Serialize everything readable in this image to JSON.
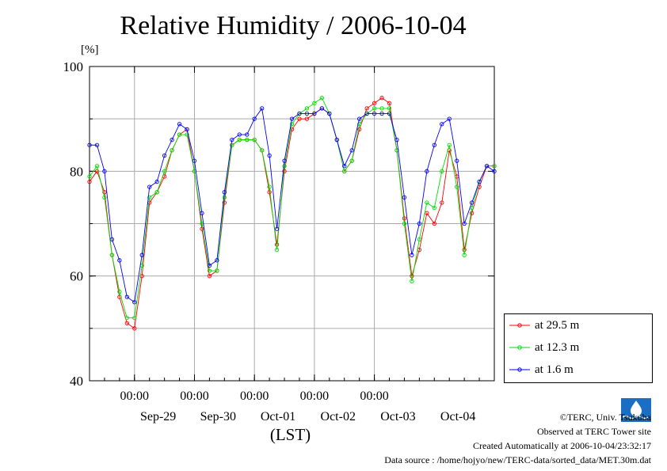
{
  "header": {
    "title": "Relative Humidity / 2006-10-04",
    "unit_label": "[%]"
  },
  "footer": {
    "copyright": "©TERC, Univ. Tsukuba",
    "observed": "Observed at TERC Tower site",
    "created": "Created Automatically at 2006-10-04/23:32:17",
    "source": "Data source : /home/hojyo/new/TERC-data/sorted_data/MET.30m.dat",
    "logo_text": "TERC"
  },
  "chart_data": {
    "type": "line",
    "title": "Relative Humidity / 2006-10-04",
    "ylabel": "[%]",
    "xlabel": "(LST)",
    "ylim": [
      40,
      100
    ],
    "yticks": [
      40,
      60,
      80,
      100
    ],
    "xlim": [
      "2006-09-28 06:00",
      "2006-10-04 24:00"
    ],
    "xticks": [
      "00:00",
      "00:00",
      "00:00",
      "00:00",
      "00:00"
    ],
    "date_labels": [
      "Sep-29",
      "Sep-30",
      "Oct-01",
      "Oct-02",
      "Oct-03",
      "Oct-04"
    ],
    "grid": true,
    "legend_position": "right, outside plot area",
    "series": [
      {
        "name": "at 29.5 m",
        "color": "#ff0000",
        "x_hours": [
          0,
          3,
          6,
          9,
          12,
          15,
          18,
          21,
          24,
          27,
          30,
          33,
          36,
          39,
          42,
          45,
          48,
          51,
          54,
          57,
          60,
          63,
          66,
          69,
          72,
          75,
          78,
          81,
          84,
          87,
          90,
          93,
          96,
          99,
          102,
          105,
          108,
          111,
          114,
          117,
          120,
          123,
          126,
          129,
          132,
          135,
          138,
          141,
          144,
          147,
          150,
          153,
          156,
          159,
          162
        ],
        "values": [
          78,
          80,
          76,
          64,
          56,
          51,
          50,
          60,
          74,
          76,
          79,
          84,
          87,
          88,
          80,
          69,
          60,
          61,
          74,
          85,
          86,
          86,
          86,
          84,
          76,
          66,
          80,
          88,
          90,
          90,
          91,
          92,
          91,
          86,
          80,
          82,
          88,
          92,
          93,
          94,
          93,
          84,
          71,
          60,
          65,
          72,
          70,
          74,
          84,
          79,
          65,
          72,
          77,
          81,
          81
        ]
      },
      {
        "name": "at 12.3 m",
        "color": "#00dd00",
        "x_hours": [
          0,
          3,
          6,
          9,
          12,
          15,
          18,
          21,
          24,
          27,
          30,
          33,
          36,
          39,
          42,
          45,
          48,
          51,
          54,
          57,
          60,
          63,
          66,
          69,
          72,
          75,
          78,
          81,
          84,
          87,
          90,
          93,
          96,
          99,
          102,
          105,
          108,
          111,
          114,
          117,
          120,
          123,
          126,
          129,
          132,
          135,
          138,
          141,
          144,
          147,
          150,
          153,
          156,
          159,
          162
        ],
        "values": [
          79,
          81,
          75,
          64,
          57,
          52,
          52,
          62,
          75,
          76,
          80,
          84,
          87,
          87,
          80,
          70,
          61,
          61,
          75,
          85,
          86,
          86,
          86,
          84,
          77,
          65,
          81,
          89,
          91,
          92,
          93,
          94,
          91,
          86,
          80,
          82,
          89,
          91,
          92,
          92,
          92,
          84,
          70,
          59,
          67,
          74,
          73,
          80,
          85,
          77,
          64,
          73,
          78,
          81,
          81
        ]
      },
      {
        "name": "at 1.6 m",
        "color": "#0000ff",
        "x_hours": [
          0,
          3,
          6,
          9,
          12,
          15,
          18,
          21,
          24,
          27,
          30,
          33,
          36,
          39,
          42,
          45,
          48,
          51,
          54,
          57,
          60,
          63,
          66,
          69,
          72,
          75,
          78,
          81,
          84,
          87,
          90,
          93,
          96,
          99,
          102,
          105,
          108,
          111,
          114,
          117,
          120,
          123,
          126,
          129,
          132,
          135,
          138,
          141,
          144,
          147,
          150,
          153,
          156,
          159,
          162
        ],
        "values": [
          85,
          85,
          80,
          67,
          63,
          56,
          55,
          64,
          77,
          78,
          83,
          86,
          89,
          88,
          82,
          72,
          62,
          63,
          76,
          86,
          87,
          87,
          90,
          92,
          83,
          69,
          82,
          90,
          91,
          91,
          91,
          92,
          91,
          86,
          81,
          84,
          90,
          91,
          91,
          91,
          91,
          86,
          75,
          64,
          70,
          80,
          85,
          89,
          90,
          82,
          70,
          74,
          78,
          81,
          80
        ]
      }
    ]
  }
}
